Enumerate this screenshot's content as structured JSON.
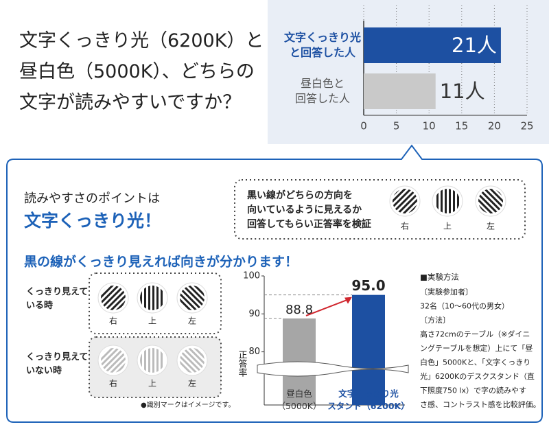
{
  "question": "文字くっきり光（6200K）と\n昼白色（5000K）、どちらの\n文字が読みやすいですか？",
  "chart_data": [
    {
      "type": "barh",
      "categories": [
        "文字くっきり光\nと回答した人",
        "昼白色と\n回答した人"
      ],
      "values": [
        21,
        11
      ],
      "value_labels": [
        "21人",
        "11人"
      ],
      "colors": [
        "#1d50a2",
        "#c9c9c9"
      ],
      "xlim": [
        0,
        25
      ],
      "xticks": [
        0,
        5,
        10,
        15,
        20,
        25
      ],
      "grid": true
    },
    {
      "type": "bar",
      "categories": [
        "昼白色\n（5000K）",
        "文字くっきり光\nスタンド（6200K）"
      ],
      "values": [
        88.8,
        95.0
      ],
      "value_labels": [
        "88.8",
        "95.0"
      ],
      "colors": [
        "#a6a6a6",
        "#1d50a2"
      ],
      "ylim": [
        66,
        100
      ],
      "yticks": [
        80,
        90,
        100
      ],
      "y_label": "正答率",
      "axis_break": true
    }
  ],
  "point": {
    "lead": "読みやすさのポイントは",
    "highlight": "文字くっきり光！"
  },
  "test_box": {
    "text": "黒い線がどちらの方向を\n向いているように見えるか\n回答してもらい正答率を検証",
    "directions": [
      "右",
      "上",
      "左"
    ]
  },
  "headline": "黒の線がくっきり見えれば向きが分かります！",
  "visible_row": {
    "label": "くっきり見えて\nいる時",
    "directions": [
      "右",
      "上",
      "左"
    ]
  },
  "invisible_row": {
    "label": "くっきり見えて\nいない時",
    "directions": [
      "右",
      "上",
      "左"
    ]
  },
  "note": "●識別マークはイメージです。",
  "method": {
    "title": "■実験方法",
    "lines": [
      "〔実験参加者〕",
      "32名（10〜60代の男女）",
      "〔方法〕",
      "高さ72cmのテーブル（※ダイニ",
      "ングテーブルを想定）上にて「昼",
      "白色」5000Kと、「文字くっきり",
      "光」6200Kのデスクスタンド（直",
      "下照度750 lx）で字の読みやす",
      "さ感、コントラスト感を比較評価。"
    ]
  }
}
